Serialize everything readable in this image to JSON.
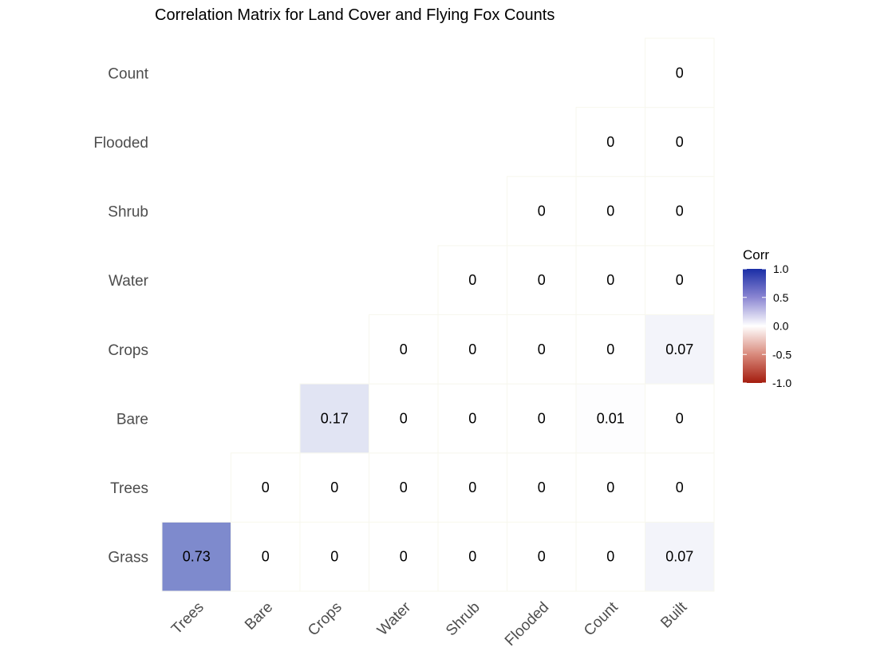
{
  "chart_data": {
    "type": "heatmap",
    "title": "Correlation Matrix for Land Cover and Flying Fox Counts",
    "x_categories": [
      "Trees",
      "Bare",
      "Crops",
      "Water",
      "Shrub",
      "Flooded",
      "Count",
      "Built"
    ],
    "y_categories": [
      "Grass",
      "Trees",
      "Bare",
      "Crops",
      "Water",
      "Shrub",
      "Flooded",
      "Count"
    ],
    "cells": [
      {
        "x": "Trees",
        "y": "Grass",
        "value": 0.73,
        "label": "0.73"
      },
      {
        "x": "Bare",
        "y": "Grass",
        "value": 0,
        "label": "0"
      },
      {
        "x": "Crops",
        "y": "Grass",
        "value": 0,
        "label": "0"
      },
      {
        "x": "Water",
        "y": "Grass",
        "value": 0,
        "label": "0"
      },
      {
        "x": "Shrub",
        "y": "Grass",
        "value": 0,
        "label": "0"
      },
      {
        "x": "Flooded",
        "y": "Grass",
        "value": 0,
        "label": "0"
      },
      {
        "x": "Count",
        "y": "Grass",
        "value": 0,
        "label": "0"
      },
      {
        "x": "Built",
        "y": "Grass",
        "value": 0.07,
        "label": "0.07"
      },
      {
        "x": "Bare",
        "y": "Trees",
        "value": 0,
        "label": "0"
      },
      {
        "x": "Crops",
        "y": "Trees",
        "value": 0,
        "label": "0"
      },
      {
        "x": "Water",
        "y": "Trees",
        "value": 0,
        "label": "0"
      },
      {
        "x": "Shrub",
        "y": "Trees",
        "value": 0,
        "label": "0"
      },
      {
        "x": "Flooded",
        "y": "Trees",
        "value": 0,
        "label": "0"
      },
      {
        "x": "Count",
        "y": "Trees",
        "value": 0,
        "label": "0"
      },
      {
        "x": "Built",
        "y": "Trees",
        "value": 0,
        "label": "0"
      },
      {
        "x": "Crops",
        "y": "Bare",
        "value": 0.17,
        "label": "0.17"
      },
      {
        "x": "Water",
        "y": "Bare",
        "value": 0,
        "label": "0"
      },
      {
        "x": "Shrub",
        "y": "Bare",
        "value": 0,
        "label": "0"
      },
      {
        "x": "Flooded",
        "y": "Bare",
        "value": 0,
        "label": "0"
      },
      {
        "x": "Count",
        "y": "Bare",
        "value": 0.01,
        "label": "0.01"
      },
      {
        "x": "Built",
        "y": "Bare",
        "value": 0,
        "label": "0"
      },
      {
        "x": "Water",
        "y": "Crops",
        "value": 0,
        "label": "0"
      },
      {
        "x": "Shrub",
        "y": "Crops",
        "value": 0,
        "label": "0"
      },
      {
        "x": "Flooded",
        "y": "Crops",
        "value": 0,
        "label": "0"
      },
      {
        "x": "Count",
        "y": "Crops",
        "value": 0,
        "label": "0"
      },
      {
        "x": "Built",
        "y": "Crops",
        "value": 0.07,
        "label": "0.07"
      },
      {
        "x": "Shrub",
        "y": "Water",
        "value": 0,
        "label": "0"
      },
      {
        "x": "Flooded",
        "y": "Water",
        "value": 0,
        "label": "0"
      },
      {
        "x": "Count",
        "y": "Water",
        "value": 0,
        "label": "0"
      },
      {
        "x": "Built",
        "y": "Water",
        "value": 0,
        "label": "0"
      },
      {
        "x": "Flooded",
        "y": "Shrub",
        "value": 0,
        "label": "0"
      },
      {
        "x": "Count",
        "y": "Shrub",
        "value": 0,
        "label": "0"
      },
      {
        "x": "Built",
        "y": "Shrub",
        "value": 0,
        "label": "0"
      },
      {
        "x": "Count",
        "y": "Flooded",
        "value": 0,
        "label": "0"
      },
      {
        "x": "Built",
        "y": "Flooded",
        "value": 0,
        "label": "0"
      },
      {
        "x": "Built",
        "y": "Count",
        "value": 0,
        "label": "0"
      }
    ],
    "legend": {
      "title": "Corr",
      "ticks": [
        "1.0",
        "0.5",
        "0.0",
        "-0.5",
        "-1.0"
      ],
      "tick_values": [
        1.0,
        0.5,
        0.0,
        -0.5,
        -1.0
      ],
      "range": [
        -1.0,
        1.0
      ],
      "placement": "right"
    },
    "colors": {
      "high": "#1a2ea6",
      "mid": "#ffffff",
      "low": "#a41c0e",
      "tile_border": "#f7f7ee",
      "text": "#000000",
      "axis_text": "#4d4d4d"
    },
    "grid": false
  }
}
